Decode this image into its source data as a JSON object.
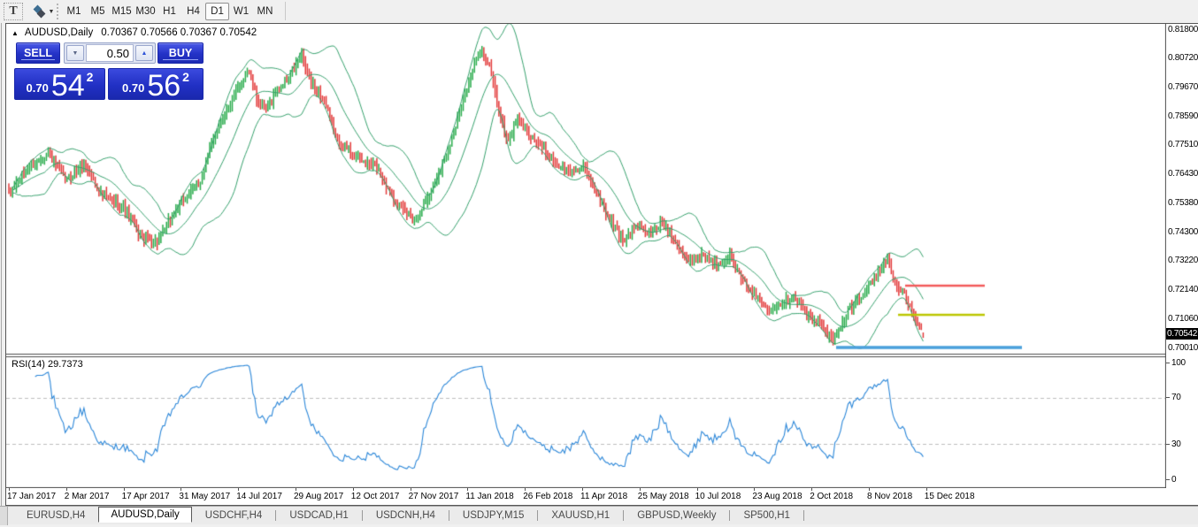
{
  "toolbar": {
    "text_tool_label": "T",
    "timeframes": [
      "M1",
      "M5",
      "M15",
      "M30",
      "H1",
      "H4",
      "D1",
      "W1",
      "MN"
    ],
    "active_timeframe": "D1"
  },
  "chart": {
    "title_symbol": "AUDUSD,Daily",
    "title_ohlc": "0.70367 0.70566 0.70367 0.70542"
  },
  "trade_panel": {
    "sell_label": "SELL",
    "buy_label": "BUY",
    "volume": "0.50",
    "sell_small": "0.70",
    "sell_big": "54",
    "sell_sup": "2",
    "buy_small": "0.70",
    "buy_big": "56",
    "buy_sup": "2"
  },
  "price_axis": {
    "ticks": [
      "0.81800",
      "0.80720",
      "0.79670",
      "0.78590",
      "0.77510",
      "0.76430",
      "0.75380",
      "0.74300",
      "0.73220",
      "0.72140",
      "0.71060",
      "0.70010"
    ],
    "current": "0.70542"
  },
  "rsi_panel": {
    "label": "RSI(14) 29.7373",
    "ticks": [
      "100",
      "70",
      "30",
      "0"
    ]
  },
  "dates": [
    "17 Jan 2017",
    "2 Mar 2017",
    "17 Apr 2017",
    "31 May 2017",
    "14 Jul 2017",
    "29 Aug 2017",
    "12 Oct 2017",
    "27 Nov 2017",
    "11 Jan 2018",
    "26 Feb 2018",
    "11 Apr 2018",
    "25 May 2018",
    "10 Jul 2018",
    "23 Aug 2018",
    "2 Oct 2018",
    "8 Nov 2018",
    "15 Dec 2018"
  ],
  "tabs": [
    {
      "label": "EURUSD,H4",
      "active": false
    },
    {
      "label": "AUDUSD,Daily",
      "active": true
    },
    {
      "label": "USDCHF,H4",
      "active": false
    },
    {
      "label": "USDCAD,H1",
      "active": false
    },
    {
      "label": "USDCNH,H4",
      "active": false
    },
    {
      "label": "USDJPY,M15",
      "active": false
    },
    {
      "label": "XAUUSD,H1",
      "active": false
    },
    {
      "label": "GBPUSD,Weekly",
      "active": false
    },
    {
      "label": "SP500,H1",
      "active": false
    }
  ],
  "chart_data": {
    "type": "candlestick",
    "symbol": "AUDUSD",
    "timeframe": "Daily",
    "ohlc_last": {
      "open": 0.70367,
      "high": 0.70566,
      "low": 0.70367,
      "close": 0.70542
    },
    "ylim": [
      0.698,
      0.818
    ],
    "price_ticks": [
      0.818,
      0.8072,
      0.7967,
      0.7859,
      0.7751,
      0.7643,
      0.7538,
      0.743,
      0.7322,
      0.7214,
      0.7106,
      0.7001
    ],
    "bar_count": 488,
    "bar_start_x": 3,
    "bar_spacing": 2.122,
    "price_anchors": [
      [
        0,
        0.757
      ],
      [
        0.019,
        0.766
      ],
      [
        0.043,
        0.772
      ],
      [
        0.063,
        0.762
      ],
      [
        0.082,
        0.768
      ],
      [
        0.101,
        0.757
      ],
      [
        0.125,
        0.752
      ],
      [
        0.145,
        0.741
      ],
      [
        0.162,
        0.739
      ],
      [
        0.179,
        0.749
      ],
      [
        0.195,
        0.757
      ],
      [
        0.21,
        0.762
      ],
      [
        0.224,
        0.778
      ],
      [
        0.237,
        0.787
      ],
      [
        0.251,
        0.796
      ],
      [
        0.262,
        0.803
      ],
      [
        0.272,
        0.791
      ],
      [
        0.282,
        0.788
      ],
      [
        0.292,
        0.795
      ],
      [
        0.306,
        0.8
      ],
      [
        0.32,
        0.808
      ],
      [
        0.33,
        0.798
      ],
      [
        0.344,
        0.792
      ],
      [
        0.358,
        0.778
      ],
      [
        0.373,
        0.773
      ],
      [
        0.387,
        0.769
      ],
      [
        0.402,
        0.767
      ],
      [
        0.416,
        0.758
      ],
      [
        0.43,
        0.751
      ],
      [
        0.445,
        0.748
      ],
      [
        0.459,
        0.756
      ],
      [
        0.474,
        0.768
      ],
      [
        0.488,
        0.781
      ],
      [
        0.503,
        0.799
      ],
      [
        0.516,
        0.811
      ],
      [
        0.527,
        0.803
      ],
      [
        0.537,
        0.786
      ],
      [
        0.546,
        0.776
      ],
      [
        0.556,
        0.785
      ],
      [
        0.57,
        0.779
      ],
      [
        0.585,
        0.773
      ],
      [
        0.599,
        0.768
      ],
      [
        0.614,
        0.765
      ],
      [
        0.628,
        0.767
      ],
      [
        0.643,
        0.758
      ],
      [
        0.657,
        0.747
      ],
      [
        0.672,
        0.74
      ],
      [
        0.686,
        0.745
      ],
      [
        0.701,
        0.742
      ],
      [
        0.715,
        0.747
      ],
      [
        0.73,
        0.739
      ],
      [
        0.744,
        0.732
      ],
      [
        0.759,
        0.735
      ],
      [
        0.773,
        0.731
      ],
      [
        0.788,
        0.734
      ],
      [
        0.802,
        0.725
      ],
      [
        0.817,
        0.719
      ],
      [
        0.831,
        0.714
      ],
      [
        0.846,
        0.717
      ],
      [
        0.86,
        0.719
      ],
      [
        0.875,
        0.711
      ],
      [
        0.889,
        0.709
      ],
      [
        0.899,
        0.703
      ],
      [
        0.908,
        0.706
      ],
      [
        0.918,
        0.714
      ],
      [
        0.932,
        0.719
      ],
      [
        0.947,
        0.726
      ],
      [
        0.961,
        0.733
      ],
      [
        0.971,
        0.722
      ],
      [
        0.981,
        0.719
      ],
      [
        0.99,
        0.711
      ],
      [
        1,
        0.7054
      ]
    ],
    "indicators": {
      "bollinger": {
        "period": 20,
        "deviation": 2
      },
      "rsi": {
        "period": 14,
        "last_value": 29.7373,
        "levels": [
          70,
          30
        ],
        "range": [
          0,
          100
        ]
      }
    },
    "levels": [
      {
        "name": "resistance-line",
        "color": "#f25a5a",
        "price": 0.723,
        "x1": 1016,
        "x2": 1106,
        "w": 2.5
      },
      {
        "name": "mid-line",
        "color": "#bcc600",
        "price": 0.7122,
        "x1": 1008,
        "x2": 1106,
        "w": 2.5
      },
      {
        "name": "support-line",
        "color": "#4aa0dc",
        "price": 0.7001,
        "x1": 938,
        "x2": 1148,
        "w": 3.5
      }
    ],
    "colors": {
      "up": "#2bac4d",
      "down": "#e23a3a",
      "band": "#35a06c",
      "rsi": "#2a86d8",
      "dash": "#bdbdbd",
      "frame": "#4c4c4c"
    }
  }
}
